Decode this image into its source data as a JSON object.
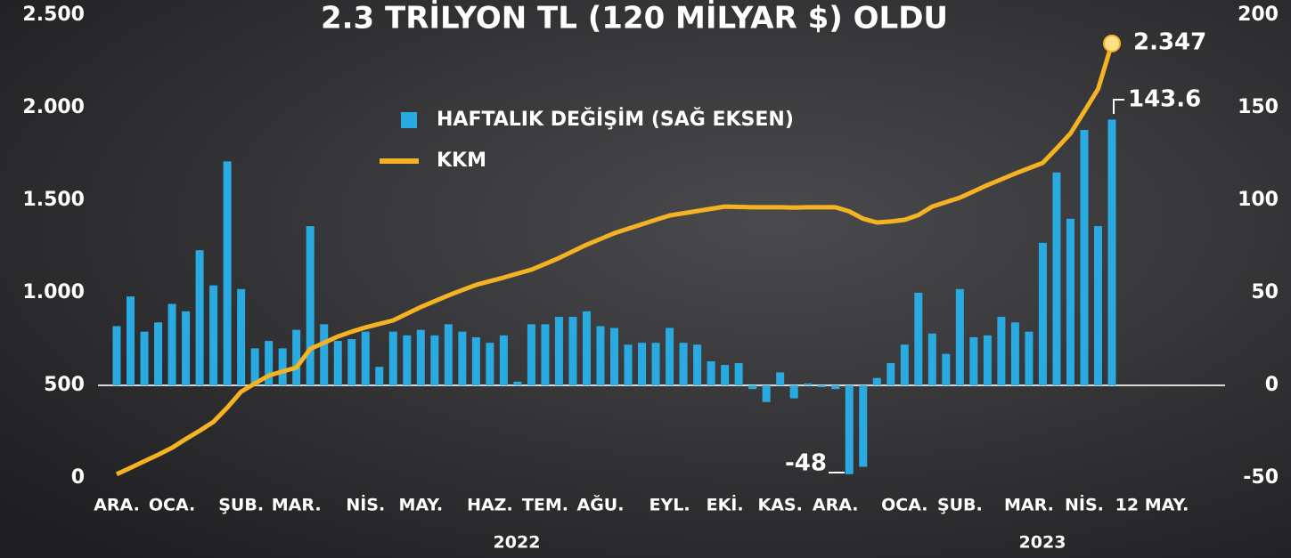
{
  "chart_data": {
    "type": "bar-line",
    "title": "2.3 TRİLYON TL (120 MİLYAR $) OLDU",
    "categories": [
      "ARA.",
      null,
      null,
      null,
      "OCA.",
      null,
      null,
      null,
      null,
      "ŞUB.",
      null,
      null,
      null,
      "MAR.",
      null,
      null,
      null,
      null,
      "NİS.",
      null,
      null,
      null,
      "MAY.",
      null,
      null,
      null,
      null,
      "HAZ.",
      null,
      null,
      null,
      "TEM.",
      null,
      null,
      null,
      "AĞU.",
      null,
      null,
      null,
      null,
      "EYL.",
      null,
      null,
      null,
      "EKİ.",
      null,
      null,
      null,
      "KAS.",
      null,
      null,
      null,
      "ARA.",
      null,
      null,
      null,
      null,
      "OCA.",
      null,
      null,
      null,
      "ŞUB.",
      null,
      null,
      null,
      null,
      "MAR.",
      null,
      null,
      null,
      "NİS.",
      null,
      "12 MAY."
    ],
    "x_group_labels": [
      "2022",
      "2023"
    ],
    "series": [
      {
        "name": "HAFTALIK DEĞİŞİM (SAĞ EKSEN)",
        "kind": "bar",
        "axis": "y2",
        "color": "#29abe2",
        "values": [
          32,
          48,
          29,
          34,
          44,
          40,
          73,
          54,
          121,
          52,
          20,
          24,
          20,
          30,
          86,
          33,
          24,
          25,
          29,
          10,
          29,
          27,
          30,
          27,
          33,
          29,
          26,
          23,
          27,
          2,
          33,
          33,
          37,
          37,
          40,
          32,
          31,
          22,
          23,
          23,
          31,
          23,
          22,
          13,
          11,
          12,
          -2,
          -9,
          7,
          -7,
          1,
          -1,
          -2,
          -48,
          -44,
          4,
          12,
          22,
          50,
          28,
          17,
          52,
          26,
          27,
          37,
          34,
          29,
          77,
          115,
          90,
          138,
          86,
          143.6
        ]
      },
      {
        "name": "KKM",
        "kind": "line",
        "color": "#f5b324",
        "values": [
          20,
          55,
          90,
          125,
          163,
          210,
          255,
          303,
          380,
          466,
          510,
          553,
          575,
          596,
          697,
          730,
          764,
          790,
          813,
          832,
          851,
          887,
          923,
          955,
          986,
          1015,
          1043,
          1063,
          1082,
          1104,
          1125,
          1156,
          1188,
          1224,
          1260,
          1291,
          1322,
          1346,
          1370,
          1394,
          1418,
          1430,
          1442,
          1454,
          1466,
          1464,
          1462,
          1462,
          1462,
          1460,
          1462,
          1462,
          1462,
          1440,
          1400,
          1380,
          1385,
          1394,
          1420,
          1466,
          1490,
          1514,
          1548,
          1582,
          1613,
          1644,
          1673,
          1702,
          1780,
          1861,
          1980,
          2101,
          2347
        ]
      }
    ],
    "annotations": [
      "2.347",
      "143.6",
      "-48"
    ],
    "ylim": [
      0,
      2500
    ],
    "yticks": [
      0,
      500,
      {
        "value": 1000,
        "label": "1.000"
      },
      {
        "value": 1500,
        "label": "1.500"
      },
      {
        "value": 2000,
        "label": "2.000"
      },
      {
        "value": 2500,
        "label": "2.500"
      }
    ],
    "y2lim": [
      -50,
      200
    ],
    "y2ticks": [
      -50,
      0,
      50,
      100,
      150,
      200
    ]
  }
}
